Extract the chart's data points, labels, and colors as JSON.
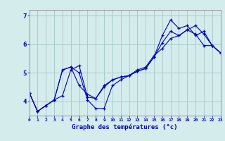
{
  "xlabel": "Graphe des températures (°c)",
  "background_color": "#d4ecec",
  "grid_color": "#aacccc",
  "line_color": "#0000bb",
  "xlim": [
    0,
    23
  ],
  "ylim": [
    3.5,
    7.2
  ],
  "yticks": [
    4,
    5,
    6,
    7
  ],
  "ytick_labels": [
    "4",
    "5",
    "6",
    "7"
  ],
  "xticks": [
    0,
    1,
    2,
    3,
    4,
    5,
    6,
    7,
    8,
    9,
    10,
    11,
    12,
    13,
    14,
    15,
    16,
    17,
    18,
    19,
    20,
    21,
    22,
    23
  ],
  "line1_x": [
    0,
    1,
    2,
    3,
    4,
    5,
    6,
    7,
    8,
    9,
    10,
    11,
    12,
    13,
    14,
    15,
    16,
    17,
    18,
    19,
    20,
    21,
    22,
    23
  ],
  "line1_y": [
    4.3,
    3.65,
    3.85,
    4.05,
    4.2,
    5.1,
    5.25,
    4.15,
    4.1,
    4.55,
    4.75,
    4.85,
    4.9,
    5.1,
    5.2,
    5.6,
    5.85,
    6.2,
    6.3,
    6.5,
    6.35,
    5.95,
    5.95,
    5.7
  ],
  "line2_x": [
    0,
    1,
    2,
    3,
    4,
    5,
    6,
    7,
    8,
    9,
    10,
    11,
    12,
    13,
    14,
    15,
    16,
    17,
    18,
    19,
    20,
    21,
    22,
    23
  ],
  "line2_y": [
    4.3,
    3.65,
    3.85,
    4.05,
    5.1,
    5.2,
    5.0,
    4.05,
    3.75,
    3.75,
    4.55,
    4.75,
    4.9,
    5.05,
    5.15,
    5.55,
    6.3,
    6.85,
    6.55,
    6.65,
    6.3,
    6.45,
    5.95,
    5.7
  ],
  "line3_x": [
    0,
    1,
    2,
    3,
    4,
    5,
    6,
    7,
    8,
    9,
    10,
    11,
    12,
    13,
    14,
    15,
    16,
    17,
    18,
    19,
    20,
    21,
    22,
    23
  ],
  "line3_y": [
    4.3,
    3.65,
    3.85,
    4.05,
    5.1,
    5.2,
    4.55,
    4.25,
    4.1,
    4.5,
    4.75,
    4.85,
    4.9,
    5.05,
    5.15,
    5.55,
    6.05,
    6.45,
    6.3,
    6.5,
    6.65,
    6.35,
    5.95,
    5.7
  ]
}
